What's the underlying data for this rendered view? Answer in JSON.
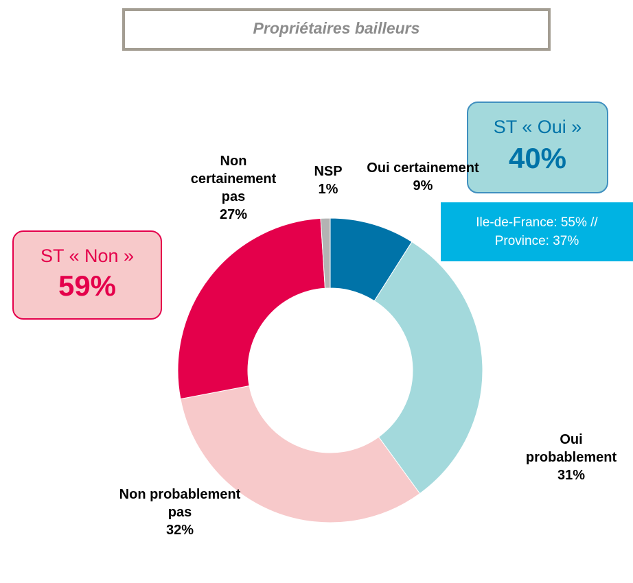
{
  "chart_data": {
    "type": "donut",
    "title": "Propriétaires bailleurs",
    "categories": [
      "Oui certainement",
      "Oui probablement",
      "Non probablement pas",
      "Non certainement pas",
      "NSP"
    ],
    "values": [
      9,
      31,
      32,
      27,
      1
    ],
    "value_labels": [
      "9%",
      "31%",
      "32%",
      "27%",
      "1%"
    ],
    "colors": [
      "#0073a8",
      "#a3d9dc",
      "#f7c9ca",
      "#e4004b",
      "#b3b3b3"
    ],
    "annotations": [
      {
        "title": "ST « Oui »",
        "value": "40%"
      },
      {
        "lines": [
          "Ile-de-France: 55% //",
          "Province: 37%"
        ]
      },
      {
        "title": "ST « Non »",
        "value": "59%"
      }
    ]
  }
}
